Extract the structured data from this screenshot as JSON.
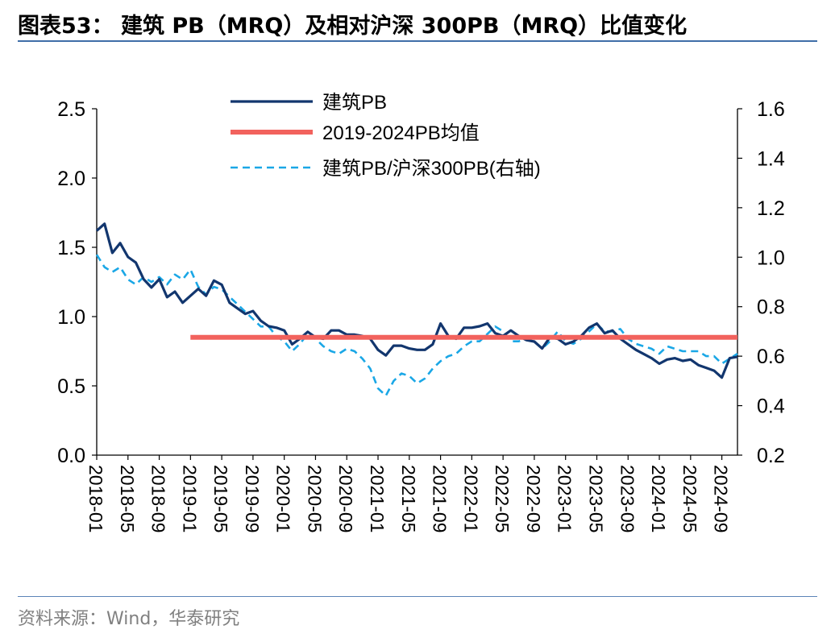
{
  "page": {
    "title": "图表53：  建筑 PB（MRQ）及相对沪深 300PB（MRQ）比值变化",
    "source": "资料来源：Wind，华泰研究"
  },
  "colors": {
    "building_pb": "#12366e",
    "average": "#f2625d",
    "ratio": "#1aa7e6",
    "axis": "#000000",
    "rule": "#3f6ea8"
  },
  "chart_data": {
    "type": "line",
    "title": "建筑 PB（MRQ）及相对沪深 300PB（MRQ）比值变化",
    "legend_position": "top-center",
    "grid": false,
    "y_left": {
      "min": 0.0,
      "max": 2.5,
      "ticks": [
        "0.0",
        "0.5",
        "1.0",
        "1.5",
        "2.0",
        "2.5"
      ]
    },
    "y_right": {
      "min": 0.2,
      "max": 1.6,
      "ticks": [
        "0.2",
        "0.4",
        "0.6",
        "0.8",
        "1.0",
        "1.2",
        "1.4",
        "1.6"
      ]
    },
    "x_range": [
      "2018-01",
      "2024-11"
    ],
    "x_ticks": [
      "2018-01",
      "2018-05",
      "2018-09",
      "2019-01",
      "2019-05",
      "2019-09",
      "2020-01",
      "2020-05",
      "2020-09",
      "2021-01",
      "2021-05",
      "2021-09",
      "2022-01",
      "2022-05",
      "2022-09",
      "2023-01",
      "2023-05",
      "2023-09",
      "2024-01",
      "2024-05",
      "2024-09"
    ],
    "series": [
      {
        "name": "建筑PB",
        "axis": "left",
        "style": "solid",
        "points": [
          [
            "2018-01",
            1.62
          ],
          [
            "2018-02",
            1.67
          ],
          [
            "2018-03",
            1.46
          ],
          [
            "2018-04",
            1.53
          ],
          [
            "2018-05",
            1.43
          ],
          [
            "2018-06",
            1.39
          ],
          [
            "2018-07",
            1.27
          ],
          [
            "2018-08",
            1.21
          ],
          [
            "2018-09",
            1.27
          ],
          [
            "2018-10",
            1.14
          ],
          [
            "2018-11",
            1.18
          ],
          [
            "2018-12",
            1.1
          ],
          [
            "2019-01",
            1.15
          ],
          [
            "2019-02",
            1.2
          ],
          [
            "2019-03",
            1.15
          ],
          [
            "2019-04",
            1.26
          ],
          [
            "2019-05",
            1.23
          ],
          [
            "2019-06",
            1.1
          ],
          [
            "2019-07",
            1.06
          ],
          [
            "2019-08",
            1.02
          ],
          [
            "2019-09",
            1.04
          ],
          [
            "2019-10",
            0.97
          ],
          [
            "2019-11",
            0.93
          ],
          [
            "2019-12",
            0.92
          ],
          [
            "2020-01",
            0.9
          ],
          [
            "2020-02",
            0.8
          ],
          [
            "2020-03",
            0.84
          ],
          [
            "2020-04",
            0.89
          ],
          [
            "2020-05",
            0.85
          ],
          [
            "2020-06",
            0.84
          ],
          [
            "2020-07",
            0.9
          ],
          [
            "2020-08",
            0.9
          ],
          [
            "2020-09",
            0.87
          ],
          [
            "2020-10",
            0.87
          ],
          [
            "2020-11",
            0.86
          ],
          [
            "2020-12",
            0.84
          ],
          [
            "2021-01",
            0.76
          ],
          [
            "2021-02",
            0.72
          ],
          [
            "2021-03",
            0.79
          ],
          [
            "2021-04",
            0.79
          ],
          [
            "2021-05",
            0.77
          ],
          [
            "2021-06",
            0.76
          ],
          [
            "2021-07",
            0.76
          ],
          [
            "2021-08",
            0.8
          ],
          [
            "2021-09",
            0.95
          ],
          [
            "2021-10",
            0.86
          ],
          [
            "2021-11",
            0.84
          ],
          [
            "2021-12",
            0.92
          ],
          [
            "2022-01",
            0.92
          ],
          [
            "2022-02",
            0.93
          ],
          [
            "2022-03",
            0.95
          ],
          [
            "2022-04",
            0.88
          ],
          [
            "2022-05",
            0.86
          ],
          [
            "2022-06",
            0.9
          ],
          [
            "2022-07",
            0.86
          ],
          [
            "2022-08",
            0.83
          ],
          [
            "2022-09",
            0.82
          ],
          [
            "2022-10",
            0.77
          ],
          [
            "2022-11",
            0.85
          ],
          [
            "2022-12",
            0.84
          ],
          [
            "2023-01",
            0.8
          ],
          [
            "2023-02",
            0.82
          ],
          [
            "2023-03",
            0.86
          ],
          [
            "2023-04",
            0.92
          ],
          [
            "2023-05",
            0.95
          ],
          [
            "2023-06",
            0.88
          ],
          [
            "2023-07",
            0.9
          ],
          [
            "2023-08",
            0.84
          ],
          [
            "2023-09",
            0.8
          ],
          [
            "2023-10",
            0.76
          ],
          [
            "2023-11",
            0.73
          ],
          [
            "2023-12",
            0.7
          ],
          [
            "2024-01",
            0.66
          ],
          [
            "2024-02",
            0.69
          ],
          [
            "2024-03",
            0.7
          ],
          [
            "2024-04",
            0.68
          ],
          [
            "2024-05",
            0.69
          ],
          [
            "2024-06",
            0.65
          ],
          [
            "2024-07",
            0.63
          ],
          [
            "2024-08",
            0.61
          ],
          [
            "2024-09",
            0.56
          ],
          [
            "2024-10",
            0.7
          ],
          [
            "2024-11",
            0.71
          ]
        ]
      },
      {
        "name": "2019-2024PB均值",
        "axis": "left",
        "style": "solid-thick",
        "points": [
          [
            "2019-01",
            0.85
          ],
          [
            "2024-11",
            0.85
          ]
        ]
      },
      {
        "name": "建筑PB/沪深300PB(右轴)",
        "axis": "right",
        "style": "dashed",
        "points": [
          [
            "2018-01",
            1.01
          ],
          [
            "2018-02",
            0.96
          ],
          [
            "2018-03",
            0.94
          ],
          [
            "2018-04",
            0.96
          ],
          [
            "2018-05",
            0.91
          ],
          [
            "2018-06",
            0.89
          ],
          [
            "2018-07",
            0.92
          ],
          [
            "2018-08",
            0.9
          ],
          [
            "2018-09",
            0.92
          ],
          [
            "2018-10",
            0.89
          ],
          [
            "2018-11",
            0.93
          ],
          [
            "2018-12",
            0.91
          ],
          [
            "2019-01",
            0.95
          ],
          [
            "2019-02",
            0.88
          ],
          [
            "2019-03",
            0.85
          ],
          [
            "2019-04",
            0.88
          ],
          [
            "2019-05",
            0.87
          ],
          [
            "2019-06",
            0.84
          ],
          [
            "2019-07",
            0.81
          ],
          [
            "2019-08",
            0.78
          ],
          [
            "2019-09",
            0.75
          ],
          [
            "2019-10",
            0.72
          ],
          [
            "2019-11",
            0.72
          ],
          [
            "2019-12",
            0.68
          ],
          [
            "2020-01",
            0.66
          ],
          [
            "2020-02",
            0.62
          ],
          [
            "2020-03",
            0.65
          ],
          [
            "2020-04",
            0.69
          ],
          [
            "2020-05",
            0.67
          ],
          [
            "2020-06",
            0.64
          ],
          [
            "2020-07",
            0.62
          ],
          [
            "2020-08",
            0.61
          ],
          [
            "2020-09",
            0.63
          ],
          [
            "2020-10",
            0.62
          ],
          [
            "2020-11",
            0.59
          ],
          [
            "2020-12",
            0.55
          ],
          [
            "2021-01",
            0.47
          ],
          [
            "2021-02",
            0.44
          ],
          [
            "2021-03",
            0.5
          ],
          [
            "2021-04",
            0.53
          ],
          [
            "2021-05",
            0.52
          ],
          [
            "2021-06",
            0.49
          ],
          [
            "2021-07",
            0.51
          ],
          [
            "2021-08",
            0.55
          ],
          [
            "2021-09",
            0.58
          ],
          [
            "2021-10",
            0.6
          ],
          [
            "2021-11",
            0.61
          ],
          [
            "2021-12",
            0.64
          ],
          [
            "2022-01",
            0.66
          ],
          [
            "2022-02",
            0.66
          ],
          [
            "2022-03",
            0.69
          ],
          [
            "2022-04",
            0.72
          ],
          [
            "2022-05",
            0.7
          ],
          [
            "2022-06",
            0.66
          ],
          [
            "2022-07",
            0.66
          ],
          [
            "2022-08",
            0.67
          ],
          [
            "2022-09",
            0.66
          ],
          [
            "2022-10",
            0.63
          ],
          [
            "2022-11",
            0.66
          ],
          [
            "2022-12",
            0.7
          ],
          [
            "2023-01",
            0.66
          ],
          [
            "2023-02",
            0.65
          ],
          [
            "2023-03",
            0.67
          ],
          [
            "2023-04",
            0.7
          ],
          [
            "2023-05",
            0.73
          ],
          [
            "2023-06",
            0.7
          ],
          [
            "2023-07",
            0.7
          ],
          [
            "2023-08",
            0.71
          ],
          [
            "2023-09",
            0.67
          ],
          [
            "2023-10",
            0.65
          ],
          [
            "2023-11",
            0.64
          ],
          [
            "2023-12",
            0.63
          ],
          [
            "2024-01",
            0.61
          ],
          [
            "2024-02",
            0.64
          ],
          [
            "2024-03",
            0.63
          ],
          [
            "2024-04",
            0.62
          ],
          [
            "2024-05",
            0.62
          ],
          [
            "2024-06",
            0.62
          ],
          [
            "2024-07",
            0.6
          ],
          [
            "2024-08",
            0.6
          ],
          [
            "2024-09",
            0.57
          ],
          [
            "2024-10",
            0.59
          ],
          [
            "2024-11",
            0.61
          ]
        ]
      }
    ]
  }
}
